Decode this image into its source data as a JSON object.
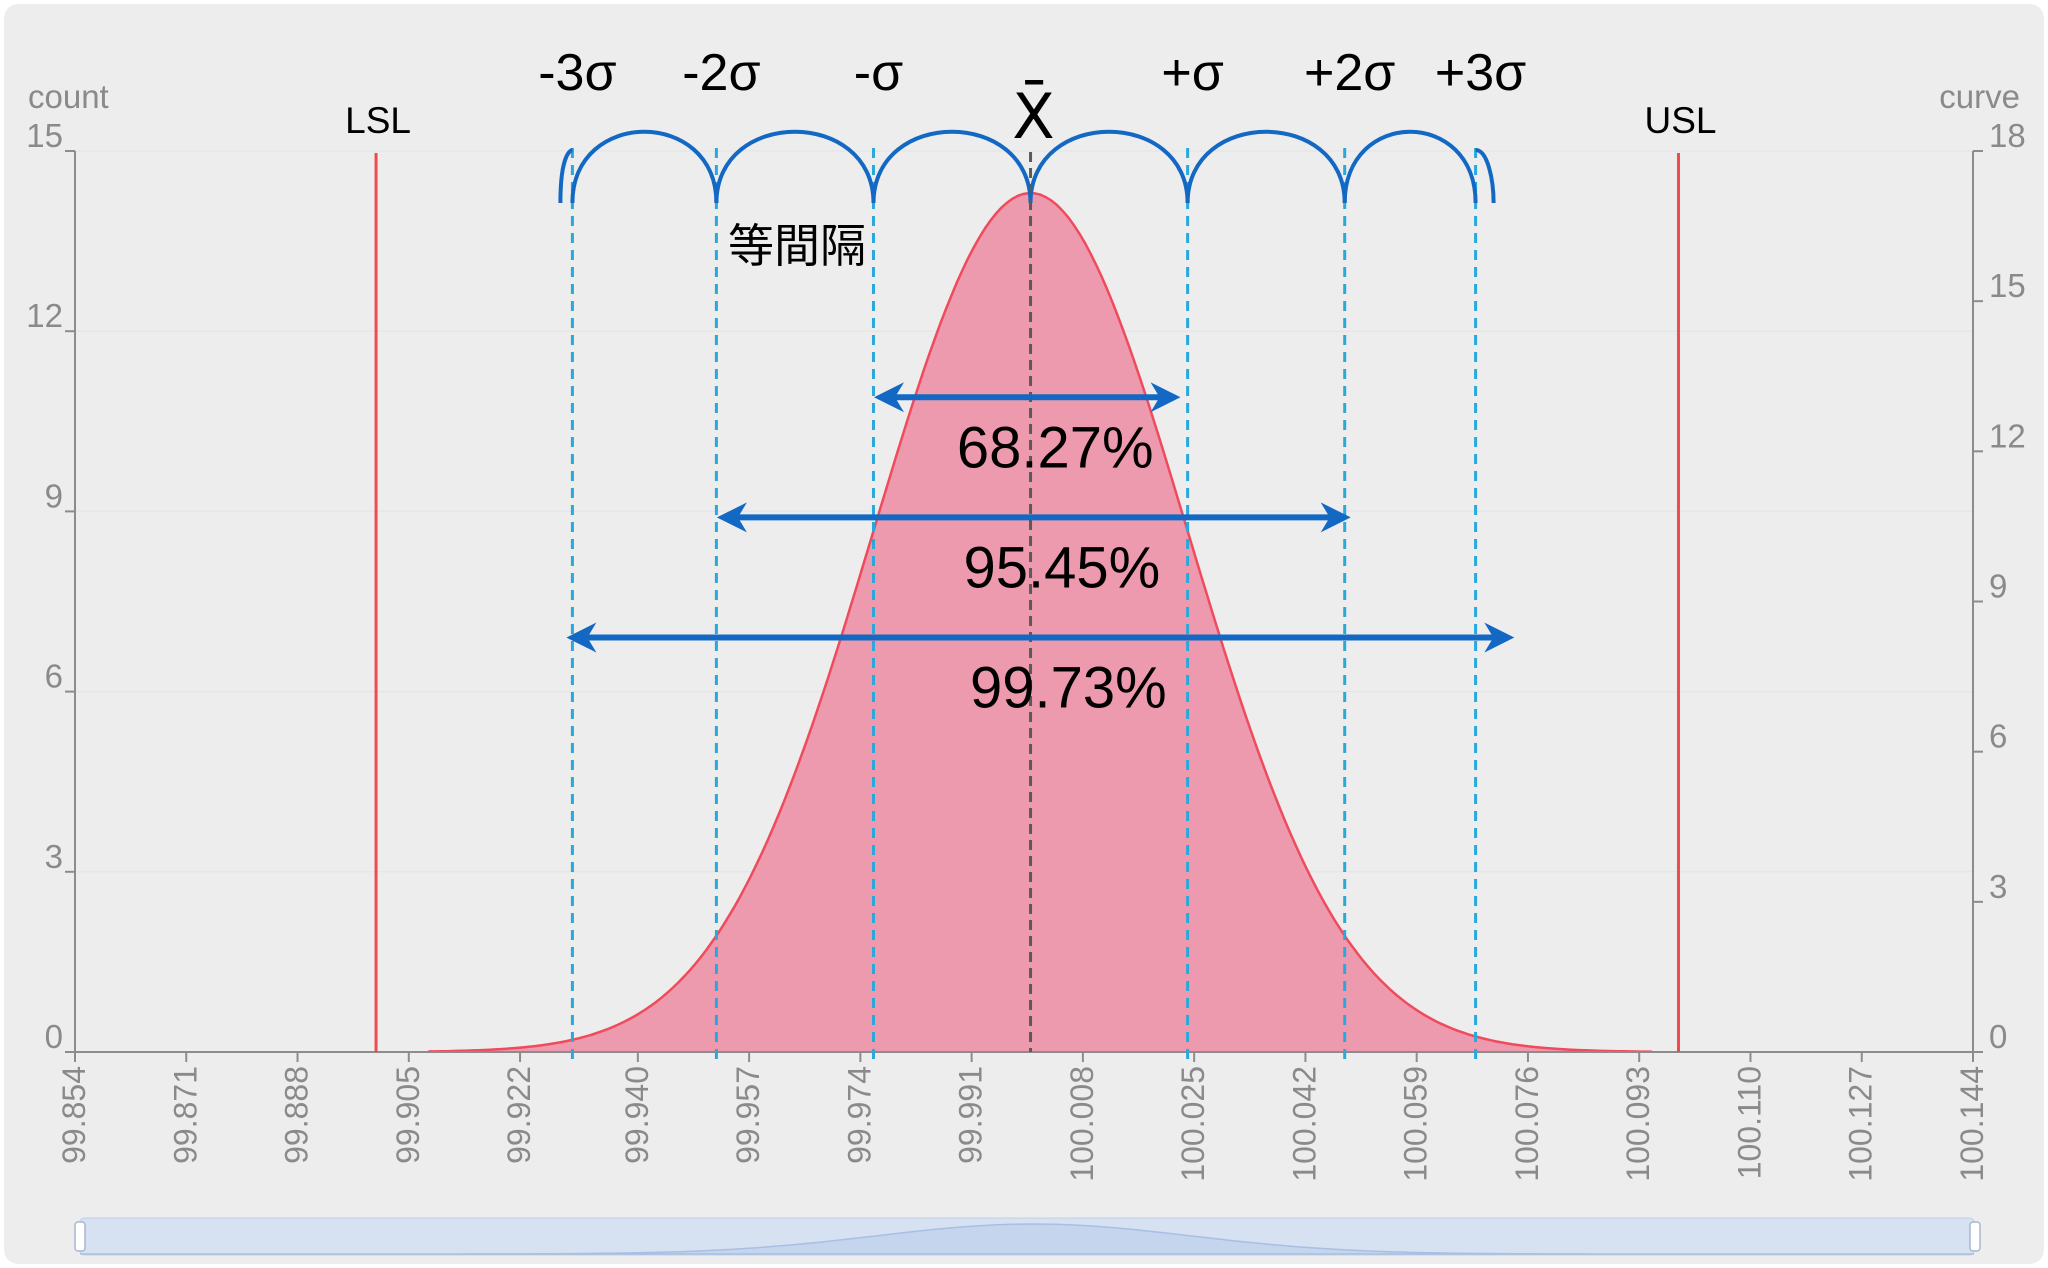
{
  "chart_data": {
    "type": "area",
    "left_axis": {
      "label": "count",
      "ticks": [
        "0",
        "3",
        "6",
        "9",
        "12",
        "15"
      ],
      "range": [
        0,
        15
      ]
    },
    "right_axis": {
      "label": "curve",
      "ticks": [
        "0",
        "3",
        "6",
        "9",
        "12",
        "15",
        "18"
      ],
      "range": [
        0,
        18
      ]
    },
    "x_ticks": [
      "99.854",
      "99.871",
      "99.888",
      "99.905",
      "99.922",
      "99.940",
      "99.957",
      "99.974",
      "99.991",
      "100.008",
      "100.025",
      "100.042",
      "100.059",
      "100.076",
      "100.093",
      "100.110",
      "100.127",
      "100.144"
    ],
    "x_range": [
      99.854,
      100.144
    ],
    "curve": {
      "mean": 100.0,
      "sigma": 0.024,
      "peak": 14.3,
      "x_start": 99.908,
      "x_end": 100.095
    },
    "spec_limits": [
      {
        "label": "LSL",
        "x": 99.9
      },
      {
        "label": "USL",
        "x": 100.099
      }
    ],
    "sigma_lines": [
      {
        "label": "-3σ",
        "x": 99.93
      },
      {
        "label": "-2σ",
        "x": 99.952
      },
      {
        "label": "-σ",
        "x": 99.976
      },
      {
        "label": "+σ",
        "x": 100.024
      },
      {
        "label": "+2σ",
        "x": 100.048
      },
      {
        "label": "+3σ",
        "x": 100.068
      }
    ],
    "mean_label": "X̄",
    "spacing_note": "等間隔",
    "ranges": [
      {
        "label": "68.27%",
        "from": 99.977,
        "to": 100.022,
        "y": 10.9
      },
      {
        "label": "95.45%",
        "from": 99.953,
        "to": 100.048,
        "y": 8.9
      },
      {
        "label": "99.73%",
        "from": 99.93,
        "to": 100.073,
        "y": 6.9
      }
    ],
    "colors": {
      "fill": "#ee9aae",
      "curve_stroke": "#ef4b5c",
      "spec_line": "#f04a4a",
      "sigma_line": "#29a8dc",
      "arrow": "#1368c4",
      "mean_line": "#5a5a5a",
      "grid": "#e4e6ea",
      "axis": "#8c8c8c",
      "slider": "#d6e1f2"
    }
  }
}
